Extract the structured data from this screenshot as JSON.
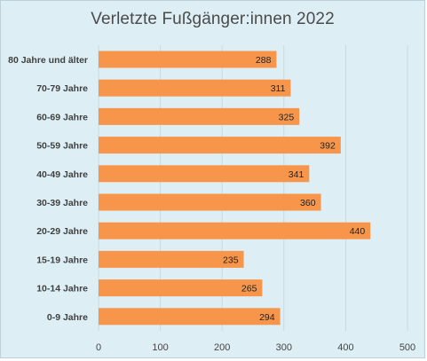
{
  "chart_data": {
    "type": "bar",
    "orientation": "horizontal",
    "title": "Verletzte Fußgänger:innen 2022",
    "xlabel": "",
    "ylabel": "",
    "categories": [
      "80 Jahre und älter",
      "70-79 Jahre",
      "60-69 Jahre",
      "50-59 Jahre",
      "40-49 Jahre",
      "30-39 Jahre",
      "20-29 Jahre",
      "15-19 Jahre",
      "10-14 Jahre",
      "0-9 Jahre"
    ],
    "values": [
      288,
      311,
      325,
      392,
      341,
      360,
      440,
      235,
      265,
      294
    ],
    "xlim": [
      0,
      500
    ],
    "xticks": [
      0,
      100,
      200,
      300,
      400,
      500
    ],
    "grid": "vertical",
    "legend": "none",
    "colors": {
      "bar": "#f7964a",
      "background": "#deeef5",
      "grid": "#c6d9e3",
      "text": "#3f3f3f"
    }
  }
}
